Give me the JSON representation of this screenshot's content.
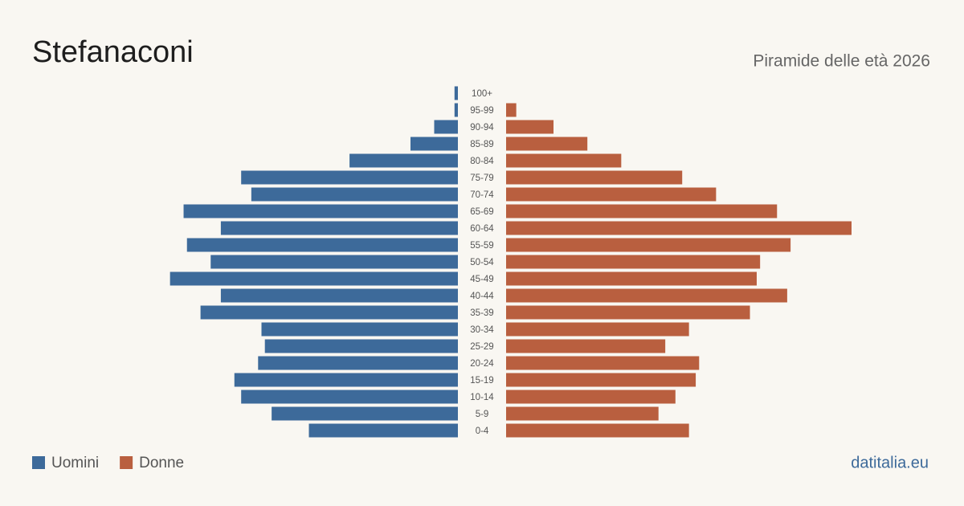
{
  "chart_data": {
    "type": "pyramid",
    "title": "Stefanaconi",
    "subtitle": "Piramide delle età 2026",
    "source": "datitalia.eu",
    "categories": [
      "100+",
      "95-99",
      "90-94",
      "85-89",
      "80-84",
      "75-79",
      "70-74",
      "65-69",
      "60-64",
      "55-59",
      "50-54",
      "45-49",
      "40-44",
      "35-39",
      "30-34",
      "25-29",
      "20-24",
      "15-19",
      "10-14",
      "5-9",
      "0-4"
    ],
    "series": [
      {
        "name": "Uomini",
        "color": "#3d6a9a",
        "values": [
          1,
          1,
          7,
          14,
          32,
          64,
          61,
          81,
          70,
          80,
          73,
          85,
          70,
          76,
          58,
          57,
          59,
          66,
          64,
          55,
          44
        ]
      },
      {
        "name": "Donne",
        "color": "#b95f3f",
        "values": [
          0,
          3,
          14,
          24,
          34,
          52,
          62,
          80,
          102,
          84,
          75,
          74,
          83,
          72,
          54,
          47,
          57,
          56,
          50,
          45,
          54
        ]
      }
    ]
  }
}
